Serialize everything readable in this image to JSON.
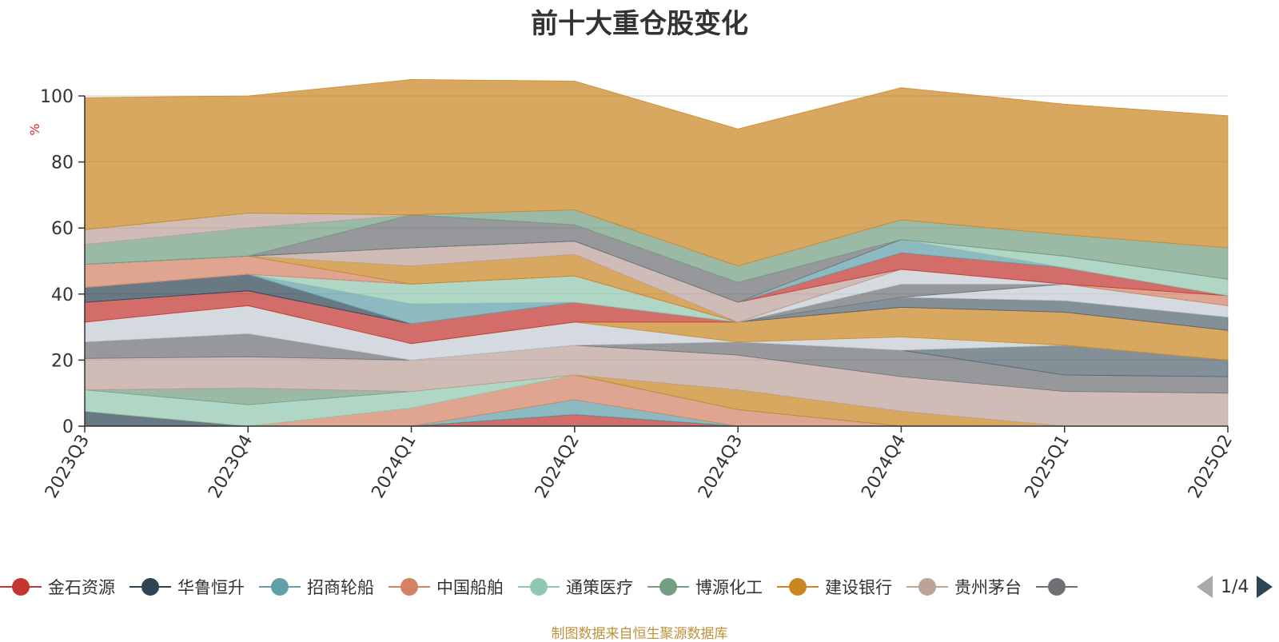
{
  "chart_data": {
    "type": "area",
    "stacked": true,
    "title": "前十大重仓股变化",
    "ylabel": "%",
    "ylim": [
      0,
      100
    ],
    "yticks": [
      0,
      20,
      40,
      60,
      80,
      100
    ],
    "x": [
      "2023Q3",
      "2023Q4",
      "2024Q1",
      "2024Q2",
      "2024Q3",
      "2024Q4",
      "2025Q1",
      "2025Q2"
    ],
    "grid": true,
    "legend_position": "bottom",
    "series": [
      {
        "name": "金石资源",
        "color": "#c23531",
        "values": [
          0,
          0,
          0,
          3.5,
          0,
          0,
          0,
          0
        ]
      },
      {
        "name": "华鲁恒升",
        "color": "#2f4554",
        "values": [
          4.5,
          0,
          0,
          0,
          0,
          0,
          0,
          0
        ]
      },
      {
        "name": "招商轮船",
        "color": "#61a0a8",
        "values": [
          0,
          0,
          0,
          4.5,
          0,
          0,
          0,
          0
        ]
      },
      {
        "name": "中国船舶",
        "color": "#d48265",
        "values": [
          0,
          0,
          5.5,
          7.5,
          5,
          0,
          0,
          0
        ]
      },
      {
        "name": "通策医疗",
        "color": "#91c7ae",
        "values": [
          6.5,
          6.5,
          5,
          0,
          0,
          0,
          0,
          0
        ]
      },
      {
        "name": "博源化工",
        "color": "#749f83",
        "values": [
          0,
          5,
          0,
          0,
          0,
          0,
          0,
          0
        ]
      },
      {
        "name": "建设银行",
        "color": "#ca8622",
        "values": [
          0,
          0,
          0,
          0,
          6,
          4.5,
          0,
          0
        ]
      },
      {
        "name": "贵州茅台",
        "color": "#bda29a",
        "values": [
          9.5,
          9.5,
          9.5,
          9,
          10.5,
          10.5,
          10.5,
          10
        ]
      },
      {
        "name": "",
        "color": "#6e7074",
        "values": [
          5,
          7,
          0,
          0,
          4,
          8,
          5,
          5
        ]
      },
      {
        "name": "",
        "color": "#546570",
        "values": [
          0,
          0,
          0,
          0,
          0,
          0,
          9,
          5
        ]
      },
      {
        "name": "",
        "color": "#c4ccd3",
        "values": [
          6,
          8.5,
          5,
          7,
          0,
          4,
          0,
          0
        ]
      },
      {
        "name": "",
        "color": "#ca8622",
        "values": [
          0,
          0,
          0,
          0,
          6,
          9,
          10,
          9
        ]
      },
      {
        "name": "",
        "color": "#c23531",
        "values": [
          6,
          4.5,
          6,
          6,
          0,
          0,
          0,
          0
        ]
      },
      {
        "name": "",
        "color": "#546570",
        "values": [
          0,
          0,
          0,
          0,
          0,
          3,
          3.5,
          4
        ]
      },
      {
        "name": "",
        "color": "#2f4554",
        "values": [
          4.5,
          5,
          0,
          0,
          0,
          0,
          0,
          0
        ]
      },
      {
        "name": "",
        "color": "#c4ccd3",
        "values": [
          0,
          0,
          0,
          0,
          0,
          0,
          5,
          3.5
        ]
      },
      {
        "name": "",
        "color": "#61a0a8",
        "values": [
          0,
          0,
          6,
          0,
          0,
          0,
          0,
          0
        ]
      },
      {
        "name": "",
        "color": "#91c7ae",
        "values": [
          0,
          0,
          6,
          8,
          0,
          0,
          0,
          0
        ]
      },
      {
        "name": "",
        "color": "#6e7074",
        "values": [
          0,
          0,
          0,
          0,
          0,
          4,
          0,
          0
        ]
      },
      {
        "name": "",
        "color": "#c4ccd3",
        "values": [
          0,
          0,
          0,
          0,
          0,
          4.5,
          0,
          0
        ]
      },
      {
        "name": "",
        "color": "#d48265",
        "values": [
          7,
          5.5,
          0,
          0,
          0,
          0,
          0,
          3
        ]
      },
      {
        "name": "",
        "color": "#ca8622",
        "values": [
          0,
          0,
          5.5,
          6.5,
          0,
          0,
          0,
          0
        ]
      },
      {
        "name": "",
        "color": "#bda29a",
        "values": [
          0,
          0,
          5.5,
          4,
          6,
          0,
          0,
          0
        ]
      },
      {
        "name": "",
        "color": "#c23531",
        "values": [
          0,
          0,
          0,
          0,
          0,
          5,
          5,
          0
        ]
      },
      {
        "name": "",
        "color": "#61a0a8",
        "values": [
          0,
          0,
          0,
          0,
          0,
          4,
          0,
          0
        ]
      },
      {
        "name": "",
        "color": "#91c7ae",
        "values": [
          0,
          0,
          0,
          0,
          0,
          0,
          3.5,
          5
        ]
      },
      {
        "name": "",
        "color": "#6e7074",
        "values": [
          0,
          0,
          10,
          5,
          6,
          0,
          0,
          0
        ]
      },
      {
        "name": "",
        "color": "#749f83",
        "values": [
          6,
          8.5,
          0,
          4.5,
          5,
          6,
          6.5,
          9.5
        ]
      },
      {
        "name": "",
        "color": "#bda29a",
        "values": [
          4.5,
          4.5,
          0,
          0,
          0,
          0,
          0,
          0
        ]
      },
      {
        "name": "",
        "color": "#ca8622",
        "values": [
          40,
          35.5,
          41,
          39,
          41.5,
          40,
          39.5,
          40
        ]
      }
    ],
    "source_note": "制图数据来自恒生聚源数据库"
  },
  "legend": {
    "items": [
      {
        "label": "金石资源",
        "color": "#c23531"
      },
      {
        "label": "华鲁恒升",
        "color": "#2f4554"
      },
      {
        "label": "招商轮船",
        "color": "#61a0a8"
      },
      {
        "label": "中国船舶",
        "color": "#d48265"
      },
      {
        "label": "通策医疗",
        "color": "#91c7ae"
      },
      {
        "label": "博源化工",
        "color": "#749f83"
      },
      {
        "label": "建设银行",
        "color": "#ca8622"
      },
      {
        "label": "贵州茅台",
        "color": "#bda29a"
      },
      {
        "label": "",
        "color": "#6e7074"
      }
    ],
    "pager": "1/4"
  }
}
